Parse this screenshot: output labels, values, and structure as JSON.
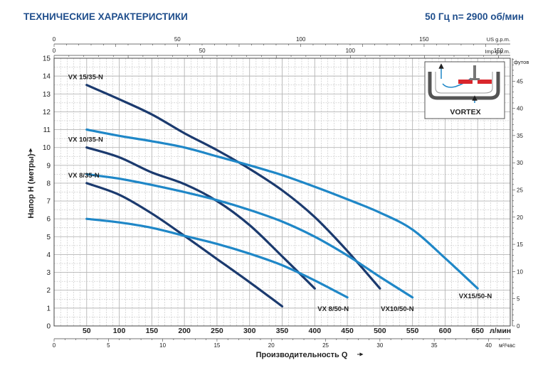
{
  "header": {
    "title": "ТЕХНИЧЕСКИЕ ХАРАКТЕРИСТИКИ",
    "spec": "50 Гц  n= 2900 об/мин"
  },
  "colors": {
    "series_35": "#1b3a6e",
    "series_50": "#1f87c7",
    "grid": "#b5b5b5",
    "header": "#1f4e8c"
  },
  "inset": {
    "label": "VORTEX",
    "icon": "vortex-impeller-icon"
  },
  "chart_data": {
    "type": "line",
    "ylabel": "Напор  H (метры)",
    "xlabel": "Производительность  Q",
    "ylim": [
      0,
      15
    ],
    "xlim": [
      0,
      700
    ],
    "y_ticks": [
      "0",
      "1",
      "2",
      "3",
      "4",
      "5",
      "6",
      "7",
      "8",
      "9",
      "10",
      "11",
      "12",
      "13",
      "14",
      "15"
    ],
    "x_ticks_lmin": [
      "50",
      "100",
      "150",
      "200",
      "250",
      "300",
      "350",
      "400",
      "450",
      "500",
      "550",
      "600",
      "650"
    ],
    "x_unit_lmin": "л/мин",
    "x_ticks_m3h": [
      "0",
      "5",
      "10",
      "15",
      "20",
      "25",
      "30",
      "35",
      "40"
    ],
    "x_unit_m3h": "м³/час",
    "x_ticks_us": [
      "0",
      "50",
      "100",
      "150"
    ],
    "x_unit_us": "US g.p.m.",
    "x_ticks_imp": [
      "0",
      "50",
      "100",
      "150"
    ],
    "x_unit_imp": "Imp g.p.m.",
    "y_ticks_feet": [
      "0",
      "5",
      "10",
      "15",
      "20",
      "25",
      "30",
      "35",
      "40",
      "45"
    ],
    "y_unit_feet": "футов",
    "series": [
      {
        "name": "VX 15/35-N",
        "group": "35",
        "label_pos": "start",
        "x": [
          50,
          100,
          150,
          200,
          250,
          300,
          350,
          400,
          450,
          500
        ],
        "y": [
          13.5,
          12.7,
          11.85,
          10.8,
          9.85,
          8.8,
          7.6,
          6.1,
          4.2,
          2.1
        ]
      },
      {
        "name": "VX 10/35-N",
        "group": "35",
        "label_pos": "start",
        "x": [
          50,
          100,
          150,
          200,
          250,
          300,
          350,
          400
        ],
        "y": [
          10.0,
          9.45,
          8.6,
          7.95,
          7.0,
          5.65,
          3.9,
          2.1
        ]
      },
      {
        "name": "VX 8/35-N",
        "group": "35",
        "label_pos": "start",
        "x": [
          50,
          100,
          150,
          200,
          250,
          300,
          350
        ],
        "y": [
          8.0,
          7.35,
          6.3,
          5.05,
          3.75,
          2.45,
          1.1
        ]
      },
      {
        "name": "VX15/50-N",
        "group": "50",
        "label_pos": "end",
        "x": [
          50,
          100,
          150,
          200,
          250,
          300,
          350,
          400,
          450,
          500,
          550,
          600,
          650
        ],
        "y": [
          11.0,
          10.65,
          10.35,
          10.0,
          9.5,
          9.0,
          8.45,
          7.8,
          7.1,
          6.35,
          5.4,
          3.8,
          2.1
        ]
      },
      {
        "name": "VX10/50-N",
        "group": "50",
        "label_pos": "end",
        "x": [
          50,
          100,
          150,
          200,
          250,
          300,
          350,
          400,
          450,
          500,
          550
        ],
        "y": [
          8.5,
          8.25,
          7.9,
          7.5,
          7.05,
          6.5,
          5.85,
          5.0,
          3.95,
          2.75,
          1.6
        ]
      },
      {
        "name": "VX 8/50-N",
        "group": "50",
        "label_pos": "end",
        "x": [
          50,
          100,
          150,
          200,
          250,
          300,
          350,
          400,
          450
        ],
        "y": [
          6.0,
          5.8,
          5.5,
          5.05,
          4.6,
          4.05,
          3.4,
          2.55,
          1.6
        ]
      }
    ]
  }
}
